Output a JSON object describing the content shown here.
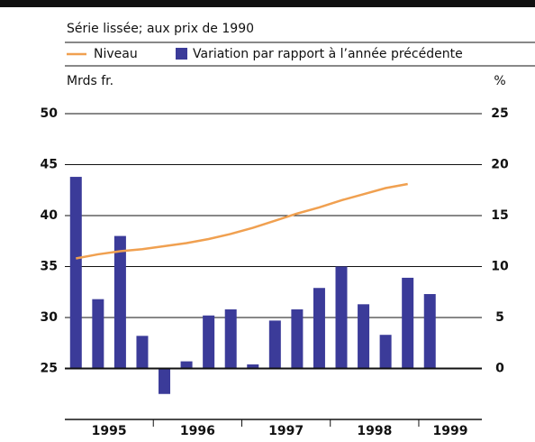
{
  "chart_data": {
    "type": "bar-line",
    "subtitle": "Série lissée; aux prix de 1990",
    "ylabel": "Mrds fr.",
    "y2label": "%",
    "categories": [
      null,
      null,
      null,
      null,
      null,
      null,
      null,
      null,
      null,
      null,
      null,
      null,
      null,
      null,
      null,
      null,
      null
    ],
    "year_labels": [
      "1995",
      "1996",
      "1997",
      "1998",
      "1999"
    ],
    "ylim": [
      20,
      50
    ],
    "yticks": [
      25,
      30,
      35,
      40,
      45,
      50
    ],
    "y2lim": [
      -5,
      25
    ],
    "y2ticks": [
      0,
      5,
      10,
      15,
      20,
      25
    ],
    "series": [
      {
        "name": "Niveau",
        "type": "line",
        "color": "#f0a050",
        "values": [
          35.8,
          36.2,
          36.5,
          36.7,
          37.0,
          37.3,
          37.7,
          38.2,
          38.8,
          39.5,
          40.2,
          40.8,
          41.5,
          42.1,
          42.7,
          43.1,
          null
        ]
      },
      {
        "name": "Variation par rapport à l’année précédente",
        "type": "bar",
        "axis": "y2",
        "color": "#3b3b99",
        "values": [
          18.8,
          6.8,
          13,
          3.2,
          -2.5,
          0.7,
          5.2,
          5.8,
          0.4,
          4.7,
          5.8,
          7.9,
          10,
          6.3,
          3.3,
          8.9,
          7.3
        ]
      }
    ]
  }
}
